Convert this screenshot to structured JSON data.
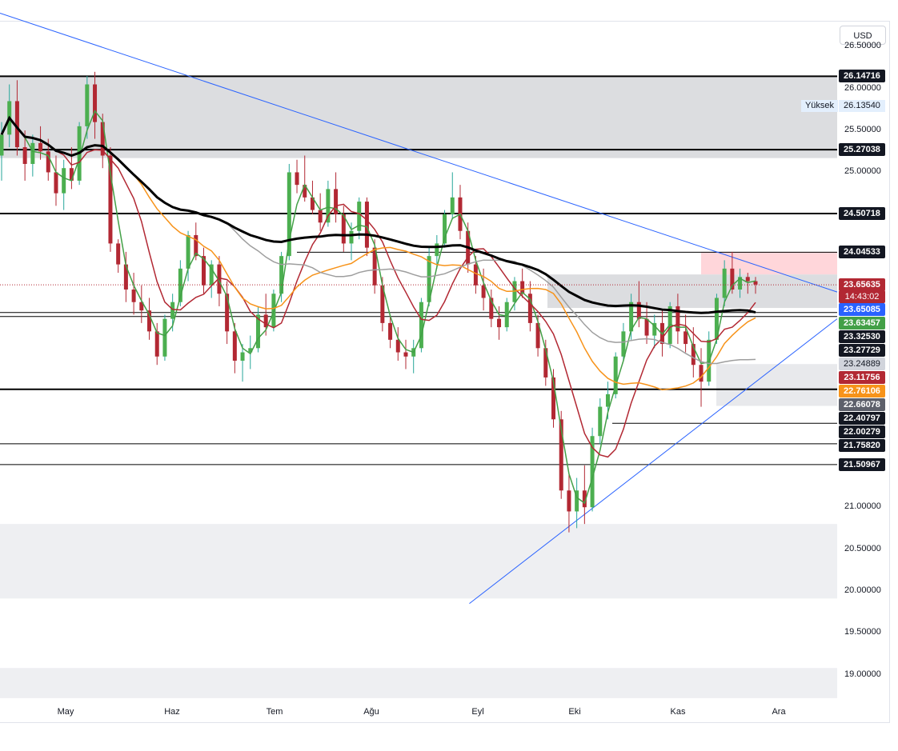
{
  "currency_button": "USD",
  "price_ticks": [
    "26.50000",
    "26.00000",
    "25.50000",
    "25.00000",
    "21.00000",
    "20.50000",
    "20.00000",
    "19.50000",
    "19.00000"
  ],
  "time_ticks": [
    "May",
    "Haz",
    "Tem",
    "Ağu",
    "Eyl",
    "Eki",
    "Kas",
    "Ara"
  ],
  "high_label": "Yüksek",
  "high_value": "26.13540",
  "countdown": "14:43:02",
  "price_tags": [
    {
      "value": "26.14716",
      "color": "#131722"
    },
    {
      "value": "25.27038",
      "color": "#131722"
    },
    {
      "value": "24.50718",
      "color": "#131722"
    },
    {
      "value": "24.04533",
      "color": "#131722"
    },
    {
      "value": "23.65635",
      "color": "#b22833"
    },
    {
      "value": "23.65085",
      "color": "#2962ff"
    },
    {
      "value": "23.63457",
      "color": "#43a047"
    },
    {
      "value": "23.32530",
      "color": "#131722"
    },
    {
      "value": "23.27729",
      "color": "#131722"
    },
    {
      "value": "23.24889",
      "color": "#9e9e9e"
    },
    {
      "value": "23.11756",
      "color": "#b22833"
    },
    {
      "value": "22.76106",
      "color": "#f7931a"
    },
    {
      "value": "22.66078",
      "color": "#5d606b"
    },
    {
      "value": "22.40797",
      "color": "#131722"
    },
    {
      "value": "22.00279",
      "color": "#131722"
    },
    {
      "value": "21.75820",
      "color": "#131722"
    },
    {
      "value": "21.50967",
      "color": "#131722"
    }
  ],
  "chart_data": {
    "type": "candlestick",
    "y_range": [
      18.7,
      26.8
    ],
    "x_range": [
      "2023-04-20",
      "2023-12-15"
    ],
    "last_price": 23.65635,
    "horizontal_levels": [
      26.14716,
      25.27038,
      24.50718,
      24.04533,
      23.3253,
      23.27729,
      22.40797,
      22.00279,
      21.7582,
      21.50967
    ],
    "zones": [
      {
        "top": 26.14716,
        "bottom": 25.17,
        "color": "#dcdde0"
      },
      {
        "top": 24.05,
        "bottom": 23.78,
        "color": "#ffd6da"
      },
      {
        "top": 23.78,
        "bottom": 23.38,
        "color": "#dcdde0"
      },
      {
        "top": 22.71,
        "bottom": 22.21,
        "color": "#e8e9ec"
      },
      {
        "top": 20.8,
        "bottom": 19.91,
        "color": "#eeeff2"
      },
      {
        "top": 19.08,
        "bottom": 18.72,
        "color": "#eeeff2"
      }
    ],
    "trendlines": [
      {
        "from": [
          "2023-04-20",
          26.9
        ],
        "to": [
          "2023-12-15",
          23.57
        ],
        "color": "#2962ff"
      },
      {
        "from": [
          "2023-09-01",
          19.85
        ],
        "to": [
          "2023-12-15",
          23.25
        ],
        "color": "#2962ff"
      }
    ],
    "candles": [
      [
        25.2,
        25.6,
        24.9,
        25.45
      ],
      [
        25.45,
        26.05,
        25.3,
        25.85
      ],
      [
        25.85,
        26.1,
        25.2,
        25.3
      ],
      [
        25.3,
        25.5,
        24.9,
        25.1
      ],
      [
        25.1,
        25.45,
        24.95,
        25.35
      ],
      [
        25.35,
        25.55,
        25.15,
        25.25
      ],
      [
        25.25,
        25.4,
        24.9,
        25.0
      ],
      [
        25.0,
        25.2,
        24.6,
        24.75
      ],
      [
        24.75,
        25.15,
        24.55,
        25.05
      ],
      [
        25.05,
        25.3,
        24.8,
        24.9
      ],
      [
        24.9,
        25.6,
        24.85,
        25.55
      ],
      [
        25.55,
        26.15,
        25.4,
        26.05
      ],
      [
        26.05,
        26.2,
        25.4,
        25.6
      ],
      [
        25.6,
        25.7,
        25.05,
        25.2
      ],
      [
        25.2,
        25.3,
        24.05,
        24.15
      ],
      [
        24.15,
        24.2,
        23.8,
        23.9
      ],
      [
        23.9,
        24.05,
        23.45,
        23.6
      ],
      [
        23.6,
        23.8,
        23.3,
        23.45
      ],
      [
        23.45,
        23.65,
        23.2,
        23.35
      ],
      [
        23.35,
        23.5,
        23.0,
        23.1
      ],
      [
        23.1,
        23.2,
        22.7,
        22.8
      ],
      [
        22.8,
        23.3,
        22.75,
        23.25
      ],
      [
        23.25,
        23.55,
        23.1,
        23.45
      ],
      [
        23.45,
        23.95,
        23.4,
        23.85
      ],
      [
        23.85,
        24.3,
        23.7,
        24.25
      ],
      [
        24.25,
        24.4,
        23.95,
        24.0
      ],
      [
        24.0,
        24.1,
        23.55,
        23.65
      ],
      [
        23.65,
        23.95,
        23.5,
        23.9
      ],
      [
        23.9,
        24.0,
        23.4,
        23.55
      ],
      [
        23.55,
        23.7,
        22.95,
        23.1
      ],
      [
        23.1,
        23.2,
        22.6,
        22.75
      ],
      [
        22.75,
        22.95,
        22.5,
        22.85
      ],
      [
        22.85,
        23.05,
        22.65,
        22.9
      ],
      [
        22.9,
        23.4,
        22.85,
        23.3
      ],
      [
        23.3,
        23.55,
        23.05,
        23.15
      ],
      [
        23.15,
        23.6,
        23.1,
        23.55
      ],
      [
        23.55,
        24.05,
        23.45,
        24.0
      ],
      [
        24.0,
        25.1,
        23.95,
        25.0
      ],
      [
        25.0,
        25.15,
        24.75,
        24.85
      ],
      [
        24.85,
        25.2,
        24.65,
        24.7
      ],
      [
        24.7,
        24.9,
        24.5,
        24.55
      ],
      [
        24.55,
        24.75,
        24.3,
        24.4
      ],
      [
        24.4,
        24.9,
        24.35,
        24.8
      ],
      [
        24.8,
        25.0,
        24.4,
        24.5
      ],
      [
        24.5,
        24.6,
        24.05,
        24.15
      ],
      [
        24.15,
        24.4,
        23.95,
        24.3
      ],
      [
        24.3,
        24.7,
        24.2,
        24.65
      ],
      [
        24.65,
        24.7,
        24.0,
        24.1
      ],
      [
        24.1,
        24.2,
        23.55,
        23.65
      ],
      [
        23.65,
        23.75,
        23.1,
        23.2
      ],
      [
        23.2,
        23.3,
        22.9,
        23.0
      ],
      [
        23.0,
        23.15,
        22.75,
        22.85
      ],
      [
        22.85,
        23.0,
        22.65,
        22.8
      ],
      [
        22.8,
        23.0,
        22.6,
        22.9
      ],
      [
        22.9,
        23.5,
        22.85,
        23.45
      ],
      [
        23.45,
        24.1,
        23.4,
        24.0
      ],
      [
        24.0,
        24.25,
        23.85,
        24.15
      ],
      [
        24.15,
        24.55,
        24.1,
        24.5
      ],
      [
        24.5,
        25.0,
        24.45,
        24.7
      ],
      [
        24.7,
        24.85,
        24.2,
        24.3
      ],
      [
        24.3,
        24.4,
        23.8,
        23.9
      ],
      [
        23.9,
        24.0,
        23.55,
        23.65
      ],
      [
        23.65,
        23.85,
        23.35,
        23.5
      ],
      [
        23.5,
        23.6,
        23.15,
        23.25
      ],
      [
        23.25,
        23.4,
        23.0,
        23.15
      ],
      [
        23.15,
        23.5,
        23.1,
        23.45
      ],
      [
        23.45,
        23.75,
        23.35,
        23.7
      ],
      [
        23.7,
        23.85,
        23.5,
        23.55
      ],
      [
        23.55,
        23.7,
        23.1,
        23.2
      ],
      [
        23.2,
        23.3,
        22.8,
        22.9
      ],
      [
        22.9,
        23.0,
        22.45,
        22.55
      ],
      [
        22.55,
        22.65,
        21.95,
        22.05
      ],
      [
        22.05,
        22.15,
        21.1,
        21.2
      ],
      [
        21.2,
        21.4,
        20.7,
        20.95
      ],
      [
        20.95,
        21.35,
        20.75,
        21.2
      ],
      [
        21.2,
        21.5,
        20.8,
        21.0
      ],
      [
        21.0,
        21.95,
        20.95,
        21.85
      ],
      [
        21.85,
        22.3,
        21.75,
        22.2
      ],
      [
        22.2,
        22.5,
        22.05,
        22.35
      ],
      [
        22.35,
        22.85,
        22.3,
        22.8
      ],
      [
        22.8,
        23.2,
        22.75,
        23.1
      ],
      [
        23.1,
        23.55,
        23.0,
        23.45
      ],
      [
        23.45,
        23.7,
        23.15,
        23.25
      ],
      [
        23.25,
        23.45,
        22.95,
        23.05
      ],
      [
        23.05,
        23.3,
        22.9,
        23.2
      ],
      [
        23.2,
        23.35,
        22.8,
        22.95
      ],
      [
        22.95,
        23.45,
        22.9,
        23.4
      ],
      [
        23.4,
        23.55,
        22.95,
        23.1
      ],
      [
        23.1,
        23.3,
        22.85,
        22.95
      ],
      [
        22.95,
        23.15,
        22.55,
        22.7
      ],
      [
        22.7,
        22.9,
        22.2,
        22.5
      ],
      [
        22.5,
        23.1,
        22.45,
        23.0
      ],
      [
        23.0,
        23.55,
        22.95,
        23.5
      ],
      [
        23.5,
        23.95,
        23.4,
        23.85
      ],
      [
        23.85,
        24.05,
        23.55,
        23.6
      ],
      [
        23.6,
        23.85,
        23.5,
        23.75
      ],
      [
        23.75,
        23.8,
        23.55,
        23.7
      ],
      [
        23.7,
        23.75,
        23.55,
        23.66
      ]
    ]
  }
}
